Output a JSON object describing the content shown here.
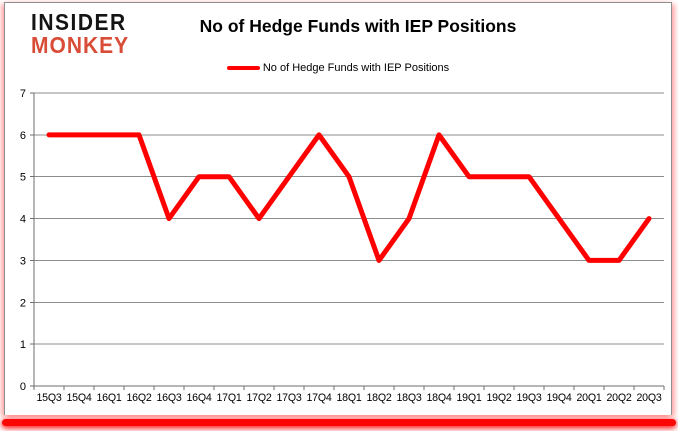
{
  "logo": {
    "line1": "INSIDER",
    "line2": "MONKEY"
  },
  "title": "No of Hedge Funds with IEP Positions",
  "legend": {
    "label": "No of Hedge Funds with IEP Positions"
  },
  "chart_data": {
    "type": "line",
    "title": "No of Hedge Funds with IEP Positions",
    "categories": [
      "15Q3",
      "15Q4",
      "16Q1",
      "16Q2",
      "16Q3",
      "16Q4",
      "17Q1",
      "17Q2",
      "17Q3",
      "17Q4",
      "18Q1",
      "18Q2",
      "18Q3",
      "18Q4",
      "19Q1",
      "19Q2",
      "19Q3",
      "19Q4",
      "20Q1",
      "20Q2",
      "20Q3"
    ],
    "series": [
      {
        "name": "No of Hedge Funds with IEP Positions",
        "values": [
          6,
          6,
          6,
          6,
          4,
          5,
          5,
          4,
          5,
          6,
          5,
          3,
          4,
          6,
          5,
          5,
          5,
          4,
          3,
          3,
          4
        ]
      }
    ],
    "xlabel": "",
    "ylabel": "",
    "ylim": [
      0,
      7
    ],
    "yticks": [
      0,
      1,
      2,
      3,
      4,
      5,
      6,
      7
    ],
    "grid": true,
    "legend_position": "top",
    "line_color": "#ff0000"
  },
  "colors": {
    "line": "#ff0000",
    "logo_accent": "#d94c37",
    "grid": "#8c8c8c",
    "axis": "#6e6e6e",
    "bottom_bar": "#fb0703",
    "text": "#000000"
  }
}
